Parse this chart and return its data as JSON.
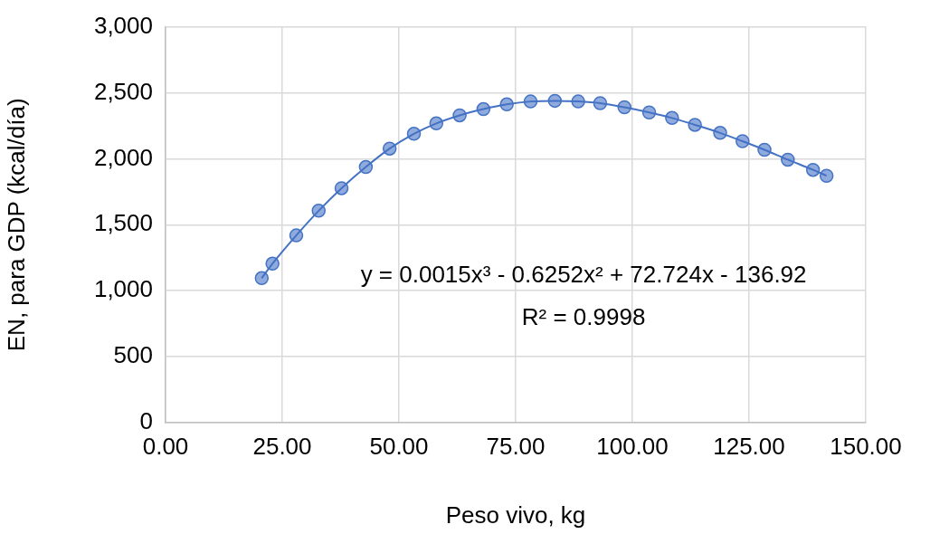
{
  "chart_data": {
    "type": "line",
    "xlabel": "Peso vivo, kg",
    "ylabel": "EN, para GDP (kcal/día)",
    "xlim": [
      0,
      150
    ],
    "xticks": [
      {
        "value": 0,
        "label": "0.00"
      },
      {
        "value": 25,
        "label": "25.00"
      },
      {
        "value": 50,
        "label": "50.00"
      },
      {
        "value": 75,
        "label": "75.00"
      },
      {
        "value": 100,
        "label": "100.00"
      },
      {
        "value": 125,
        "label": "125.00"
      },
      {
        "value": 150,
        "label": "150.00"
      }
    ],
    "ylim": [
      0,
      3000
    ],
    "yticks": [
      {
        "value": 0,
        "label": "0"
      },
      {
        "value": 500,
        "label": "500"
      },
      {
        "value": 1000,
        "label": "1,000"
      },
      {
        "value": 1500,
        "label": "1,500"
      },
      {
        "value": 2000,
        "label": "2,000"
      },
      {
        "value": 2500,
        "label": "2,500"
      },
      {
        "value": 3000,
        "label": "3,000"
      }
    ],
    "x": [
      20.6,
      22.9,
      28.0,
      32.8,
      37.7,
      42.9,
      48.0,
      53.2,
      58.0,
      63.0,
      68.1,
      73.1,
      78.2,
      83.4,
      88.4,
      93.1,
      98.3,
      103.6,
      108.5,
      113.4,
      118.8,
      123.6,
      128.3,
      133.3,
      138.7,
      141.6
    ],
    "series": [
      {
        "color": "#4472c4",
        "values": [
          1095,
          1205,
          1419,
          1606,
          1777,
          1937,
          2077,
          2189,
          2268,
          2329,
          2376,
          2412,
          2434,
          2439,
          2434,
          2421,
          2390,
          2351,
          2309,
          2257,
          2196,
          2133,
          2068,
          1993,
          1916,
          1871
        ]
      }
    ],
    "annotations": [
      "y = 0.0015x³ - 0.6252x² + 72.724x - 136.92",
      "R² = 0.9998"
    ],
    "grid": true,
    "legend": false,
    "marker": "circle",
    "line_style": "solid"
  }
}
